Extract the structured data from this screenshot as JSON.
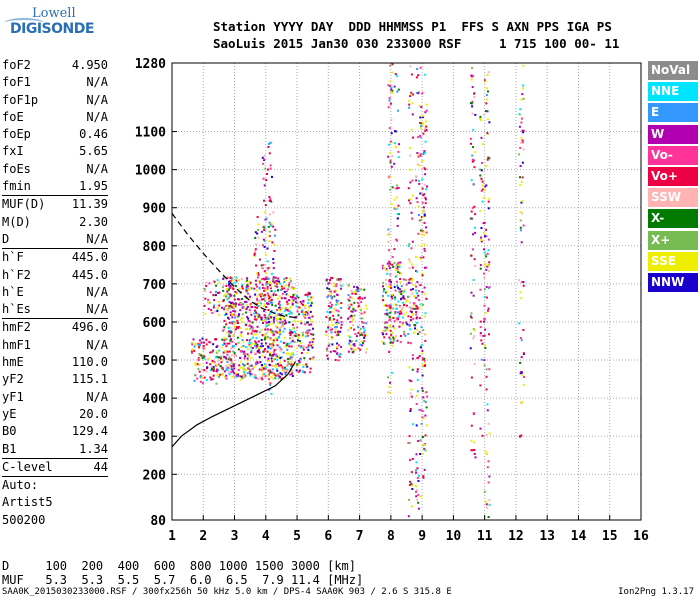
{
  "logo": {
    "line1": "Lowell",
    "line2": "DIGISONDE"
  },
  "header": {
    "line1": "Station YYYY DAY  DDD HHMMSS P1  FFS S AXN PPS IGA PS",
    "line2": "SaoLuis 2015 Jan30 030 233000 RSF     1 715 100 00- 11"
  },
  "params": {
    "group1": [
      {
        "k": "foF2",
        "v": "4.950"
      },
      {
        "k": "foF1",
        "v": "N/A"
      },
      {
        "k": "foF1p",
        "v": "N/A"
      },
      {
        "k": "foE",
        "v": "N/A"
      },
      {
        "k": "foEp",
        "v": "0.46"
      },
      {
        "k": "fxI",
        "v": "5.65"
      },
      {
        "k": "foEs",
        "v": "N/A"
      },
      {
        "k": "fmin",
        "v": "1.95"
      }
    ],
    "group2": [
      {
        "k": "MUF(D)",
        "v": "11.39"
      },
      {
        "k": "M(D)",
        "v": "2.30"
      },
      {
        "k": "D",
        "v": "N/A"
      }
    ],
    "group3": [
      {
        "k": "h`F",
        "v": "445.0"
      },
      {
        "k": "h`F2",
        "v": "445.0"
      },
      {
        "k": "h`E",
        "v": "N/A"
      },
      {
        "k": "h`Es",
        "v": "N/A"
      }
    ],
    "group4": [
      {
        "k": "hmF2",
        "v": "496.0"
      },
      {
        "k": "hmF1",
        "v": "N/A"
      },
      {
        "k": "hmE",
        "v": "110.0"
      },
      {
        "k": "yF2",
        "v": "115.1"
      },
      {
        "k": "yF1",
        "v": "N/A"
      },
      {
        "k": "yE",
        "v": "20.0"
      },
      {
        "k": "B0",
        "v": "129.4"
      },
      {
        "k": "B1",
        "v": "1.34"
      }
    ],
    "group5": [
      {
        "k": "C-level",
        "v": "44"
      }
    ],
    "group6": [
      {
        "k": "Auto:",
        "v": ""
      },
      {
        "k": "Artist5",
        "v": ""
      },
      {
        "k": "500200",
        "v": ""
      }
    ]
  },
  "legend": [
    {
      "label": "NoVal",
      "color": "#8c8c8c"
    },
    {
      "label": "NNE",
      "color": "#00e5ff"
    },
    {
      "label": "E",
      "color": "#3399ff"
    },
    {
      "label": "W",
      "color": "#b000b0"
    },
    {
      "label": "Vo-",
      "color": "#ff3399"
    },
    {
      "label": "Vo+",
      "color": "#ee0044"
    },
    {
      "label": "SSW",
      "color": "#ffb3b3"
    },
    {
      "label": "X-",
      "color": "#007a00"
    },
    {
      "label": "X+",
      "color": "#77bb55"
    },
    {
      "label": "SSE",
      "color": "#eeee00"
    },
    {
      "label": "NNW",
      "color": "#1a00cc"
    }
  ],
  "dmuf": {
    "line1": "D     100  200  400  600  800 1000 1500 3000 [km]",
    "line2": "MUF   5.3  5.3  5.5  5.7  6.0  6.5  7.9 11.4 [MHz]"
  },
  "footer": "SAA0K_2015030233000.RSF / 300fx256h 50 kHz 5.0 km / DPS-4 SAA0K 903 / 2.6 S 315.8 E",
  "version": "Ion2Png 1.3.17",
  "chart_data": {
    "type": "scatter",
    "title": "",
    "xlabel": "",
    "ylabel": "",
    "xlim": [
      1,
      16
    ],
    "ylim": [
      80,
      1280
    ],
    "x_ticks": [
      1,
      2,
      3,
      4,
      5,
      6,
      7,
      8,
      9,
      10,
      11,
      12,
      13,
      14,
      15,
      16
    ],
    "y_ticks": [
      80,
      200,
      300,
      400,
      500,
      600,
      700,
      800,
      900,
      1000,
      1100,
      1280
    ],
    "grid": true,
    "profile_curve": {
      "name": "",
      "style": "solid",
      "x": [
        1.0,
        1.3,
        1.8,
        2.3,
        2.8,
        3.3,
        3.8,
        4.3,
        4.7,
        4.95
      ],
      "y": [
        272,
        300,
        330,
        352,
        372,
        392,
        412,
        432,
        462,
        496
      ]
    },
    "trace_curve": {
      "name": "",
      "style": "dashed",
      "x": [
        1.0,
        1.5,
        2.0,
        2.5,
        3.0,
        3.5,
        3.9,
        4.3,
        4.6,
        4.95
      ],
      "y": [
        885,
        830,
        780,
        735,
        692,
        655,
        635,
        622,
        615,
        612
      ]
    },
    "echo_regions": [
      {
        "x": [
          1.6,
          2.6
        ],
        "y": [
          440,
          560
        ],
        "density": 0.55
      },
      {
        "x": [
          2.0,
          3.0
        ],
        "y": [
          620,
          720
        ],
        "density": 0.35
      },
      {
        "x": [
          2.6,
          4.9
        ],
        "y": [
          450,
          720
        ],
        "density": 0.7
      },
      {
        "x": [
          3.6,
          4.3
        ],
        "y": [
          720,
          900
        ],
        "density": 0.2
      },
      {
        "x": [
          4.9,
          5.5
        ],
        "y": [
          470,
          680
        ],
        "density": 0.55
      },
      {
        "x": [
          5.9,
          6.4
        ],
        "y": [
          500,
          720
        ],
        "density": 0.55
      },
      {
        "x": [
          6.6,
          7.2
        ],
        "y": [
          520,
          700
        ],
        "density": 0.55
      },
      {
        "x": [
          7.7,
          8.3
        ],
        "y": [
          540,
          760
        ],
        "density": 0.55
      },
      {
        "x": [
          8.3,
          8.9
        ],
        "y": [
          560,
          720
        ],
        "density": 0.45
      }
    ],
    "echo_columns": [
      {
        "x": 4.1,
        "y": [
          400,
          1100
        ]
      },
      {
        "x": 3.95,
        "y": [
          600,
          1050
        ]
      },
      {
        "x": 7.95,
        "y": [
          400,
          1280
        ]
      },
      {
        "x": 8.15,
        "y": [
          600,
          1280
        ]
      },
      {
        "x": 8.6,
        "y": [
          80,
          1280
        ]
      },
      {
        "x": 8.85,
        "y": [
          80,
          1280
        ]
      },
      {
        "x": 9.0,
        "y": [
          180,
          1280
        ]
      },
      {
        "x": 9.05,
        "y": [
          250,
          1200
        ]
      },
      {
        "x": 10.6,
        "y": [
          200,
          1280
        ]
      },
      {
        "x": 10.9,
        "y": [
          300,
          1150
        ]
      },
      {
        "x": 11.05,
        "y": [
          80,
          1280
        ]
      },
      {
        "x": 12.15,
        "y": [
          280,
          1280
        ]
      }
    ]
  }
}
